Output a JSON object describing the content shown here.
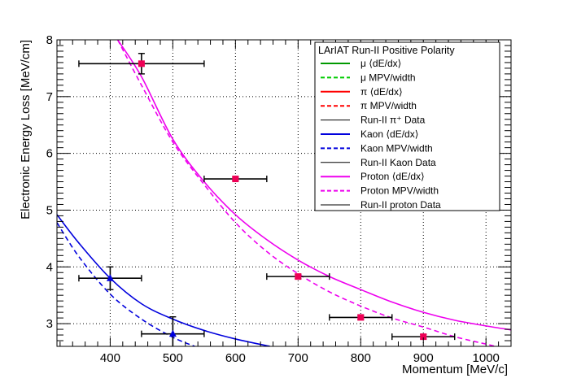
{
  "chart_data": {
    "type": "line",
    "xlabel": "Momentum [MeV/c]",
    "ylabel": "Electronic Energy Loss [MeV/cm]",
    "xlim": [
      315,
      1040
    ],
    "ylim": [
      2.6,
      8.0
    ],
    "x_ticks": [
      400,
      500,
      600,
      700,
      800,
      900,
      1000
    ],
    "y_ticks": [
      3,
      4,
      5,
      6,
      7,
      8
    ],
    "grid": true,
    "legend_placement": "top-right",
    "legend": {
      "title": "LArIAT Run-II Positive Polarity",
      "entries": [
        {
          "label": "μ ⟨dE/dx⟩",
          "color": "#009900",
          "style": "solid"
        },
        {
          "label": "μ MPV/width",
          "color": "#00cc00",
          "style": "dashed"
        },
        {
          "label": "π ⟨dE/dx⟩",
          "color": "#ff0000",
          "style": "solid"
        },
        {
          "label": "π MPV/width",
          "color": "#ff0000",
          "style": "dashed"
        },
        {
          "label": "Run-II π⁺ Data",
          "color": "#000000",
          "style": "solid"
        },
        {
          "label": "Kaon ⟨dE/dx⟩",
          "color": "#0000dd",
          "style": "solid"
        },
        {
          "label": "Kaon MPV/width",
          "color": "#0000dd",
          "style": "dashed"
        },
        {
          "label": "Run-II Kaon Data",
          "color": "#000000",
          "style": "solid"
        },
        {
          "label": "Proton ⟨dE/dx⟩",
          "color": "#ee00ee",
          "style": "solid"
        },
        {
          "label": "Proton MPV/width",
          "color": "#ee00ee",
          "style": "dashed"
        },
        {
          "label": "Run-II proton Data",
          "color": "#000000",
          "style": "solid"
        }
      ]
    },
    "series": [
      {
        "name": "Kaon ⟨dE/dx⟩",
        "kind": "curve",
        "color": "#0000dd",
        "style": "solid",
        "x": [
          315,
          350,
          400,
          450,
          500,
          550,
          600,
          655
        ],
        "y": [
          4.92,
          4.42,
          3.8,
          3.35,
          3.08,
          2.88,
          2.73,
          2.6
        ]
      },
      {
        "name": "Kaon MPV/width",
        "kind": "curve",
        "color": "#0000dd",
        "style": "dashed",
        "x": [
          315,
          350,
          400,
          450,
          500,
          535
        ],
        "y": [
          4.78,
          4.18,
          3.52,
          3.08,
          2.76,
          2.6
        ]
      },
      {
        "name": "Proton ⟨dE/dx⟩",
        "kind": "curve",
        "color": "#ee00ee",
        "style": "solid",
        "x": [
          412,
          450,
          500,
          550,
          600,
          650,
          700,
          750,
          800,
          850,
          900,
          950,
          1000,
          1040
        ],
        "y": [
          8.0,
          7.35,
          6.25,
          5.5,
          4.92,
          4.48,
          4.12,
          3.83,
          3.6,
          3.38,
          3.2,
          3.06,
          2.96,
          2.89
        ]
      },
      {
        "name": "Proton MPV/width",
        "kind": "curve",
        "color": "#ee00ee",
        "style": "dashed",
        "x": [
          412,
          450,
          500,
          550,
          600,
          650,
          700,
          750,
          800,
          850,
          900,
          950,
          1000,
          1015
        ],
        "y": [
          8.0,
          7.2,
          6.2,
          5.45,
          4.78,
          4.27,
          3.88,
          3.56,
          3.31,
          3.1,
          2.94,
          2.77,
          2.64,
          2.6
        ]
      },
      {
        "name": "Run-II Kaon Data",
        "kind": "points",
        "color": "#0000dd",
        "marker": "triangle",
        "x": [
          400,
          500
        ],
        "y": [
          3.8,
          2.82
        ],
        "xerr": [
          50,
          50
        ],
        "yerr": [
          0.2,
          0.3
        ]
      },
      {
        "name": "Run-II proton Data",
        "kind": "points",
        "color": "#ee0055",
        "marker": "square",
        "x": [
          450,
          600,
          700,
          800,
          900
        ],
        "y": [
          7.58,
          5.55,
          3.83,
          3.11,
          2.77
        ],
        "xerr": [
          100,
          50,
          50,
          50,
          50
        ],
        "yerr": [
          0.18,
          0.03,
          0.04,
          0.04,
          0.04
        ]
      }
    ]
  }
}
